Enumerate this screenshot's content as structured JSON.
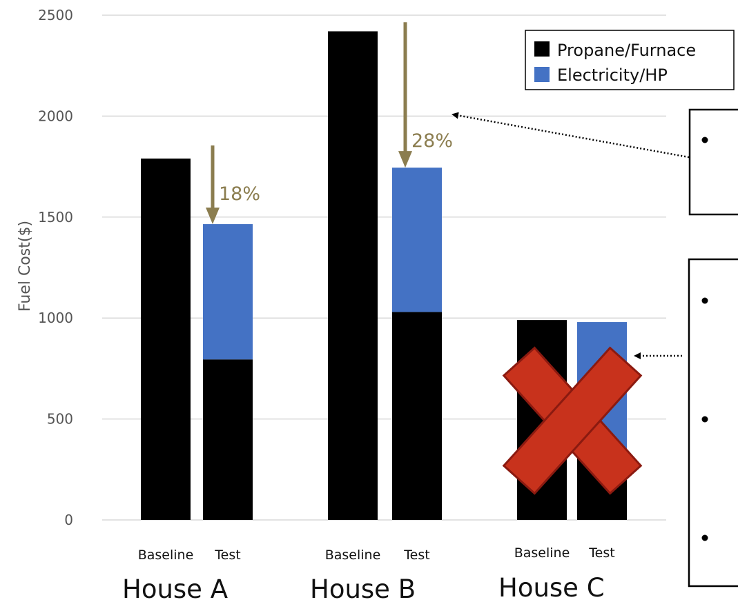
{
  "chart_data": {
    "type": "bar",
    "stacked": true,
    "ylabel": "Fuel Cost($)",
    "ylim": [
      0,
      2500
    ],
    "yticks": [
      0,
      500,
      1000,
      1500,
      2000,
      2500
    ],
    "grid": true,
    "legend_position": "top-right",
    "groups": [
      {
        "name": "House A",
        "bars": [
          {
            "label": "Baseline",
            "propane": 1790,
            "electricity": 0
          },
          {
            "label": "Test",
            "propane": 795,
            "electricity": 670
          }
        ],
        "reduction": "18%"
      },
      {
        "name": "House B",
        "bars": [
          {
            "label": "Baseline",
            "propane": 2420,
            "electricity": 0
          },
          {
            "label": "Test",
            "propane": 1030,
            "electricity": 715
          }
        ],
        "reduction": "28%"
      },
      {
        "name": "House C",
        "bars": [
          {
            "label": "Baseline",
            "propane": 990,
            "electricity": 0
          },
          {
            "label": "Test",
            "propane": 345,
            "electricity": 635
          }
        ],
        "crossed_out": true
      }
    ],
    "series": [
      {
        "name": "Propane/Furnace",
        "color": "#000000"
      },
      {
        "name": "Electricity/HP",
        "color": "#4472c4"
      }
    ],
    "colors": {
      "arrow": "#8b7d4f",
      "cross": "#c8321c",
      "cross_edge": "#8b1a10",
      "grid": "#d9d9d9"
    }
  }
}
